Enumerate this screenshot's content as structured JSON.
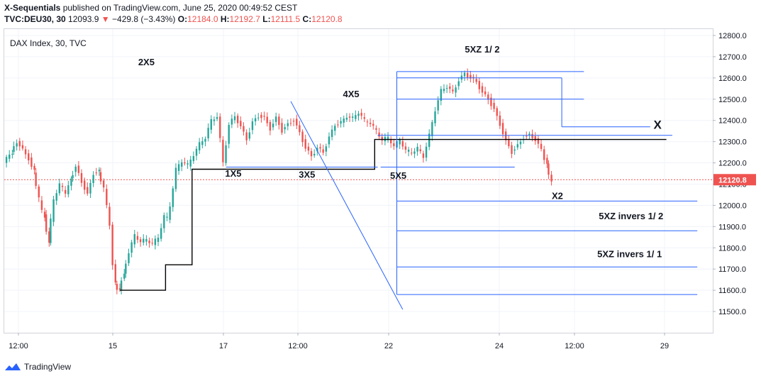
{
  "header": {
    "author": "X-Sequentials",
    "published": "published on TradingView.com, June 25, 2020 00:49:52 CEST",
    "symbol": "TVC:DEU30, 30",
    "last": "12093.9",
    "change": "−429.8 (−3.43%)",
    "open_label": "O:",
    "open": "12184.0",
    "high_label": "H:",
    "high": "12192.7",
    "low_label": "L:",
    "low": "12111.5",
    "close_label": "C:",
    "close": "12120.8"
  },
  "footer": {
    "brand": "TradingView"
  },
  "colors": {
    "up": "#26a69a",
    "down": "#ef5350",
    "annotation_line": "#2962ff",
    "black_line": "#000000",
    "current_price": "#ef5350"
  },
  "chart_data": {
    "type": "candlestick",
    "title": "DAX Index, 30, TVC",
    "y_ticks": [
      11500,
      11600,
      11700,
      11800,
      11900,
      12000,
      12100,
      12200,
      12300,
      12400,
      12500,
      12600,
      12700,
      12800
    ],
    "y_tick_labels": [
      "11500.0",
      "11600.0",
      "11700.0",
      "11800.0",
      "11900.0",
      "12000.0",
      "12100.0",
      "12200.0",
      "12300.0",
      "12400.0",
      "12500.0",
      "12600.0",
      "12700.0",
      "12800.0"
    ],
    "ylim": [
      11400,
      12830
    ],
    "x_tick_labels": [
      "12:00",
      "15",
      "17",
      "12:00",
      "22",
      "24",
      "12:00",
      "29"
    ],
    "current_price": 12120.8,
    "current_price_label": "12120.8",
    "price_path": [
      [
        0,
        12200
      ],
      [
        5,
        12250
      ],
      [
        9,
        12300
      ],
      [
        13,
        12260
      ],
      [
        17,
        12220
      ],
      [
        20,
        12160
      ],
      [
        24,
        12030
      ],
      [
        27,
        11950
      ],
      [
        30,
        11830
      ],
      [
        34,
        12030
      ],
      [
        38,
        12100
      ],
      [
        42,
        12060
      ],
      [
        45,
        12120
      ],
      [
        49,
        12180
      ],
      [
        53,
        12110
      ],
      [
        57,
        12050
      ],
      [
        61,
        12150
      ],
      [
        64,
        12160
      ],
      [
        68,
        12080
      ],
      [
        72,
        11910
      ],
      [
        75,
        11630
      ],
      [
        78,
        11600
      ],
      [
        81,
        11680
      ],
      [
        85,
        11780
      ],
      [
        89,
        11860
      ],
      [
        93,
        11830
      ],
      [
        97,
        11840
      ],
      [
        101,
        11820
      ],
      [
        105,
        11850
      ],
      [
        109,
        11950
      ],
      [
        111,
        11940
      ],
      [
        113,
        12000
      ],
      [
        117,
        12170
      ],
      [
        121,
        12210
      ],
      [
        125,
        12190
      ],
      [
        129,
        12240
      ],
      [
        133,
        12290
      ],
      [
        137,
        12320
      ],
      [
        141,
        12400
      ],
      [
        145,
        12420
      ],
      [
        149,
        12200
      ],
      [
        153,
        12380
      ],
      [
        157,
        12420
      ],
      [
        161,
        12370
      ],
      [
        165,
        12310
      ],
      [
        169,
        12390
      ],
      [
        173,
        12420
      ],
      [
        177,
        12410
      ],
      [
        181,
        12360
      ],
      [
        185,
        12410
      ],
      [
        189,
        12350
      ],
      [
        193,
        12380
      ],
      [
        197,
        12400
      ],
      [
        201,
        12340
      ],
      [
        205,
        12270
      ],
      [
        209,
        12230
      ],
      [
        213,
        12270
      ],
      [
        217,
        12250
      ],
      [
        221,
        12320
      ],
      [
        225,
        12380
      ],
      [
        229,
        12390
      ],
      [
        233,
        12420
      ],
      [
        237,
        12410
      ],
      [
        241,
        12440
      ],
      [
        245,
        12400
      ],
      [
        249,
        12390
      ],
      [
        253,
        12350
      ],
      [
        257,
        12310
      ],
      [
        261,
        12320
      ],
      [
        265,
        12280
      ],
      [
        269,
        12310
      ],
      [
        273,
        12260
      ],
      [
        277,
        12250
      ],
      [
        281,
        12270
      ],
      [
        285,
        12230
      ],
      [
        289,
        12330
      ],
      [
        293,
        12450
      ],
      [
        297,
        12540
      ],
      [
        301,
        12560
      ],
      [
        305,
        12530
      ],
      [
        309,
        12590
      ],
      [
        313,
        12620
      ],
      [
        317,
        12600
      ],
      [
        321,
        12580
      ],
      [
        325,
        12530
      ],
      [
        329,
        12500
      ],
      [
        333,
        12450
      ],
      [
        337,
        12380
      ],
      [
        341,
        12300
      ],
      [
        345,
        12250
      ],
      [
        349,
        12280
      ],
      [
        353,
        12320
      ],
      [
        357,
        12330
      ],
      [
        361,
        12310
      ],
      [
        365,
        12260
      ],
      [
        368,
        12200
      ],
      [
        371,
        12120
      ]
    ],
    "annotations": [
      {
        "label": "2X5",
        "x": 96,
        "y": 12660
      },
      {
        "label": "4X5",
        "x": 235,
        "y": 12510
      },
      {
        "label": "1X5",
        "x": 155,
        "y": 12135
      },
      {
        "label": "3X5",
        "x": 205,
        "y": 12130
      },
      {
        "label": "5X5",
        "x": 267,
        "y": 12125
      },
      {
        "label": "5XZ  1/ 2",
        "x": 324,
        "y": 12720
      },
      {
        "label": "X",
        "x": 443,
        "y": 12360
      },
      {
        "label": "X2",
        "x": 375,
        "y": 12030
      },
      {
        "label": "5XZ invers 1/ 2",
        "x": 425,
        "y": 11935
      },
      {
        "label": "5XZ invers 1/ 1",
        "x": 424,
        "y": 11755
      }
    ],
    "lines": {
      "black_step": [
        [
          78,
          11600
        ],
        [
          109,
          11600
        ],
        [
          109,
          11720
        ],
        [
          127,
          11720
        ],
        [
          127,
          12170
        ],
        [
          251,
          12170
        ],
        [
          251,
          12310
        ],
        [
          449,
          12310
        ]
      ],
      "diagonal": [
        [
          194,
          12490
        ],
        [
          270,
          11510
        ]
      ],
      "h_1x5": [
        [
          150,
          12180
        ],
        [
          253,
          12180
        ]
      ],
      "h_3x5": [
        [
          255,
          12180
        ],
        [
          346,
          12180
        ]
      ],
      "h_4x5": [
        [
          253,
          12330
        ],
        [
          453,
          12330
        ]
      ],
      "h_top1": [
        [
          266,
          12630
        ],
        [
          393,
          12630
        ]
      ],
      "h_top2": [
        [
          266,
          12600
        ],
        [
          378,
          12600
        ]
      ],
      "h_top3": [
        [
          266,
          12500
        ],
        [
          393,
          12500
        ]
      ],
      "h_x": [
        [
          378,
          12370
        ],
        [
          438,
          12370
        ]
      ],
      "h_x2": [
        [
          266,
          12020
        ],
        [
          470,
          12020
        ]
      ],
      "h_inv12": [
        [
          266,
          11880
        ],
        [
          470,
          11880
        ]
      ],
      "h_inv11_a": [
        [
          266,
          11710
        ],
        [
          470,
          11710
        ]
      ],
      "h_inv11_b": [
        [
          266,
          11580
        ],
        [
          470,
          11580
        ]
      ],
      "v_5x5": [
        [
          266,
          11580
        ],
        [
          266,
          12630
        ]
      ],
      "v_mid": [
        [
          378,
          12370
        ],
        [
          378,
          12600
        ]
      ]
    }
  }
}
